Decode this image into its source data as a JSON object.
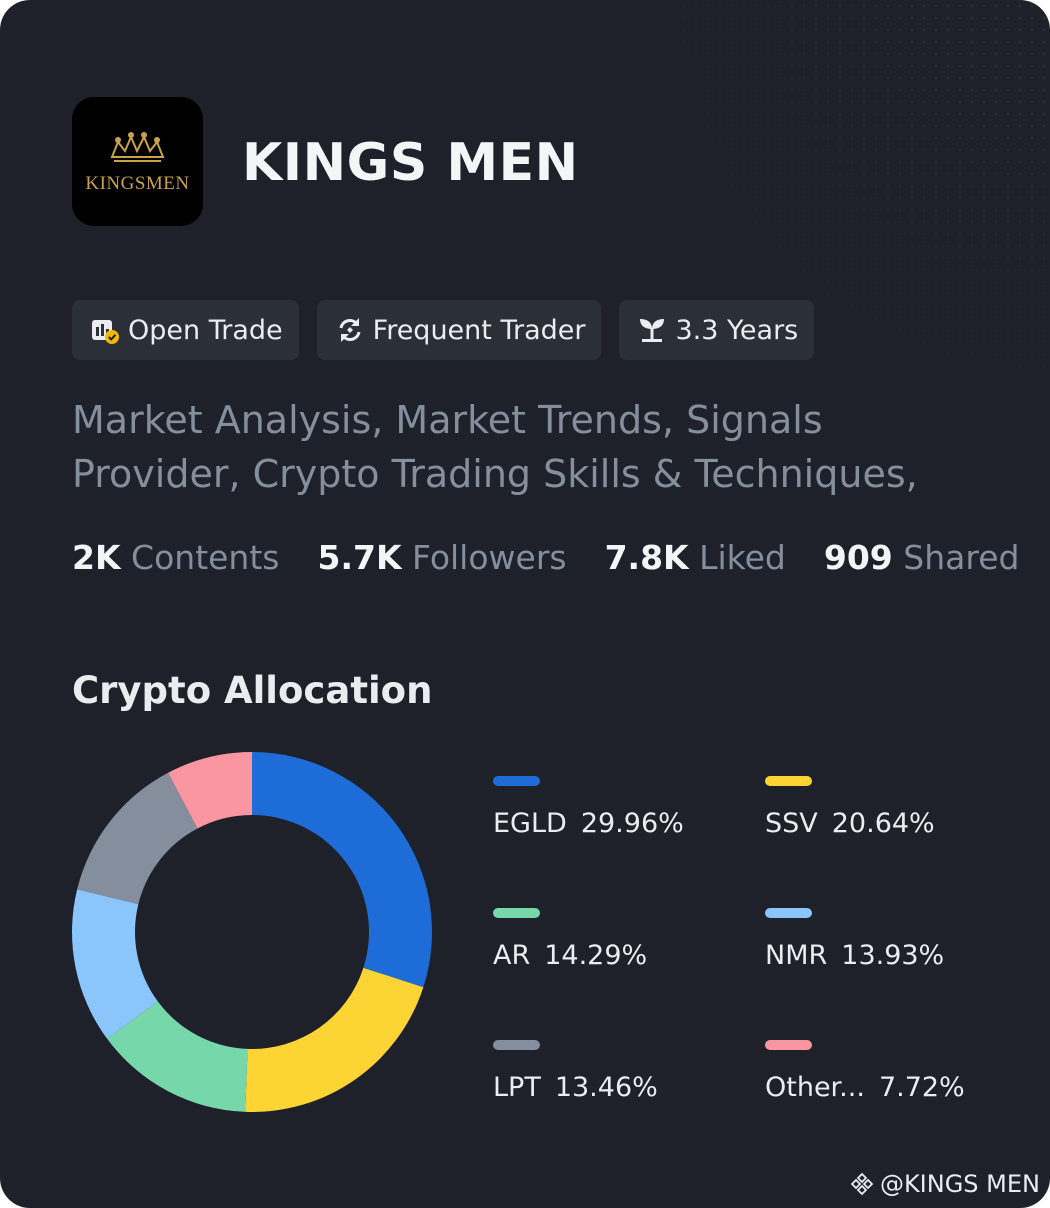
{
  "profile": {
    "name": "KINGS MEN",
    "logo_text": "KINGSMEN",
    "bio": "Market Analysis, Market Trends, Signals Provider, Crypto Trading Skills & Techniques,"
  },
  "tags": [
    {
      "label": "Open Trade",
      "icon": "open-trade-icon"
    },
    {
      "label": "Frequent Trader",
      "icon": "refresh-icon"
    },
    {
      "label": "3.3 Years",
      "icon": "sprout-icon"
    }
  ],
  "stats": [
    {
      "value": "2K",
      "label": "Contents"
    },
    {
      "value": "5.7K",
      "label": "Followers"
    },
    {
      "value": "7.8K",
      "label": "Liked"
    },
    {
      "value": "909",
      "label": "Shared"
    }
  ],
  "section_title": "Crypto Allocation",
  "watermark": "@KINGS MEN",
  "colors": {
    "background": "#1e2129",
    "tag_background": "#2b2f38",
    "muted_text": "#848e9c",
    "primary_text": "#f4f5f7"
  },
  "chart_data": {
    "type": "pie",
    "title": "Crypto Allocation",
    "donut": true,
    "slices": [
      {
        "label": "EGLD",
        "value": 29.96,
        "value_label": "29.96%",
        "color": "#1e6cd8"
      },
      {
        "label": "SSV",
        "value": 20.64,
        "value_label": "20.64%",
        "color": "#fcd535"
      },
      {
        "label": "AR",
        "value": 14.29,
        "value_label": "14.29%",
        "color": "#76d7aa"
      },
      {
        "label": "NMR",
        "value": 13.93,
        "value_label": "13.93%",
        "color": "#8ac6fc"
      },
      {
        "label": "LPT",
        "value": 13.46,
        "value_label": "13.46%",
        "color": "#848e9c"
      },
      {
        "label": "Other...",
        "value": 7.72,
        "value_label": "7.72%",
        "color": "#f9969f"
      }
    ],
    "legend_placement": "right"
  }
}
